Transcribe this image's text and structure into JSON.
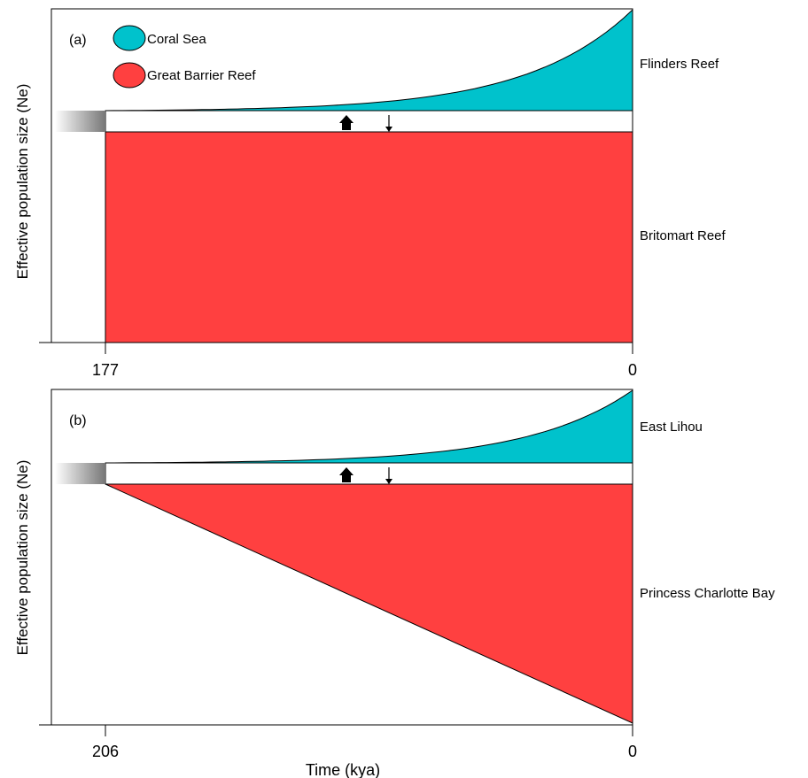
{
  "legend": {
    "items": [
      {
        "label": "Coral Sea",
        "color": "#00C2CC"
      },
      {
        "label": "Great Barrier Reef",
        "color": "#FF4040"
      }
    ]
  },
  "colors": {
    "coral_sea": "#00C2CC",
    "great_barrier_reef": "#FF4040",
    "ancestral_fade": "#808080"
  },
  "panels": [
    {
      "tag": "(a)",
      "ylabel": "Effective population size (Ne)",
      "split_time": "177",
      "present_time": "0",
      "top_population": "Flinders Reef",
      "bottom_population": "Britomart Reef",
      "bottom_shape": "constant",
      "top_shape": "exponential growth"
    },
    {
      "tag": "(b)",
      "ylabel": "Effective population size (Ne)",
      "split_time": "206",
      "present_time": "0",
      "top_population": "East Lihou",
      "bottom_population": "Princess Charlotte Bay",
      "bottom_shape": "linear growth",
      "top_shape": "exponential growth"
    }
  ],
  "xlabel": "Time (kya)",
  "migration_arrows": [
    "thick-up",
    "thin-down"
  ]
}
